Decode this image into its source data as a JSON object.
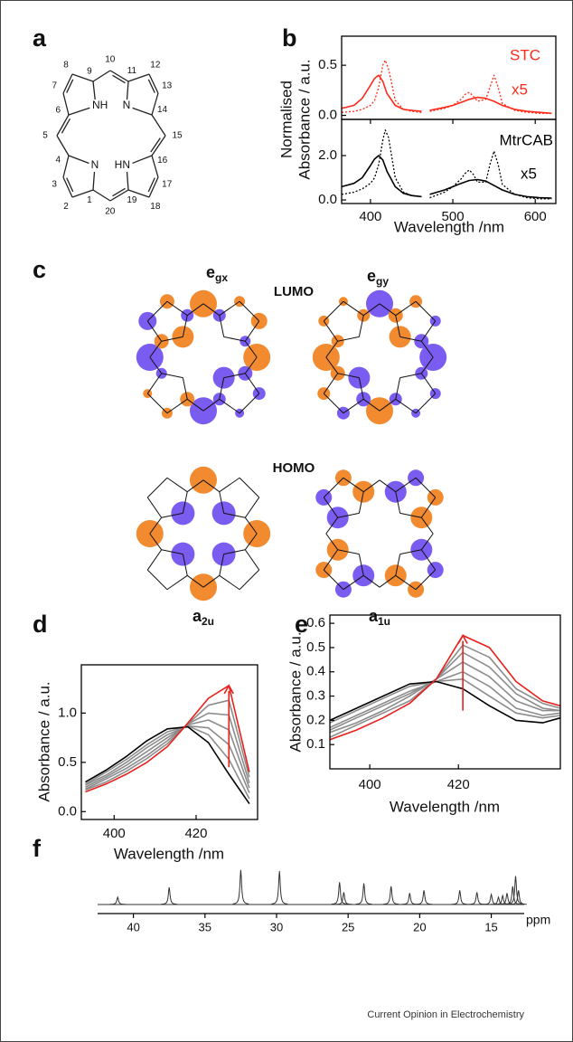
{
  "panel_labels": [
    "a",
    "b",
    "c",
    "d",
    "e",
    "f"
  ],
  "structure": {
    "atom_labels": [
      "1",
      "2",
      "3",
      "4",
      "5",
      "6",
      "7",
      "8",
      "9",
      "10",
      "11",
      "12",
      "13",
      "14",
      "15",
      "16",
      "17",
      "18",
      "19",
      "20"
    ],
    "nitrogen_labels": [
      "NH",
      "N",
      "N",
      "HN"
    ]
  },
  "orbitals": {
    "lumo": "LUMO",
    "homo": "HOMO",
    "labels": [
      {
        "main": "e",
        "sub": "gx"
      },
      {
        "main": "e",
        "sub": "gy"
      },
      {
        "main": "a",
        "sub": "2u"
      },
      {
        "main": "a",
        "sub": "1u"
      }
    ]
  },
  "chart_data": [
    {
      "type": "line",
      "ylabel": [
        "Normalised",
        "Absorbance / a.u."
      ],
      "xlim": [
        365,
        625
      ],
      "ylim": [
        -0.04,
        0.79
      ],
      "yticks": [
        {
          "value": 0,
          "label": "0.0"
        },
        0.5
      ],
      "annotations": [
        {
          "text": "STC",
          "color": "#ff2a1a"
        },
        {
          "text": "x5",
          "color": "#ff2a1a"
        }
      ],
      "series": [
        {
          "color": "#ff2a1a",
          "dash": false,
          "x": [
            365,
            380,
            390,
            400,
            405,
            410,
            415,
            420,
            430,
            440,
            450,
            462,
            467,
            472,
            490,
            500,
            510,
            520,
            530,
            540,
            550,
            560,
            575,
            590,
            605,
            620
          ],
          "values": [
            0.07,
            0.1,
            0.17,
            0.3,
            0.37,
            0.4,
            0.34,
            0.22,
            0.1,
            0.06,
            0.05,
            0.04,
            null,
            0.05,
            0.08,
            0.1,
            0.13,
            0.16,
            0.18,
            0.17,
            0.14,
            0.1,
            0.06,
            0.04,
            0.03,
            0.02
          ]
        },
        {
          "color": "#ff2a1a",
          "dash": true,
          "x": [
            365,
            380,
            390,
            400,
            405,
            410,
            415,
            418,
            422,
            430,
            440,
            450,
            462,
            467,
            472,
            490,
            500,
            510,
            515,
            520,
            525,
            530,
            540,
            545,
            550,
            555,
            560,
            575,
            590,
            605,
            620
          ],
          "values": [
            0.03,
            0.04,
            0.06,
            0.1,
            0.15,
            0.28,
            0.5,
            0.55,
            0.46,
            0.15,
            0.06,
            0.04,
            0.03,
            null,
            0.04,
            0.07,
            0.1,
            0.16,
            0.21,
            0.23,
            0.19,
            0.14,
            0.16,
            0.28,
            0.4,
            0.28,
            0.12,
            0.05,
            0.03,
            0.02,
            0.02
          ]
        }
      ]
    },
    {
      "type": "line",
      "xlabel": "Wavelength /nm",
      "xlim": [
        365,
        625
      ],
      "ylim": [
        -0.16,
        3.63
      ],
      "xticks": [
        400,
        500,
        600
      ],
      "yticks": [
        {
          "value": 0,
          "label": "0.0"
        },
        {
          "value": 2,
          "label": "2.0"
        }
      ],
      "annotations": [
        {
          "text": "MtrCAB",
          "color": "#000000"
        },
        {
          "text": "x5",
          "color": "#000000"
        }
      ],
      "series": [
        {
          "color": "#000000",
          "dash": false,
          "x": [
            365,
            380,
            390,
            400,
            405,
            410,
            415,
            420,
            430,
            440,
            450,
            462,
            467,
            472,
            490,
            500,
            510,
            520,
            530,
            540,
            550,
            560,
            575,
            590,
            605,
            620
          ],
          "values": [
            0.6,
            0.75,
            1.0,
            1.55,
            1.85,
            2.0,
            1.8,
            1.3,
            0.6,
            0.3,
            0.2,
            0.15,
            null,
            0.25,
            0.45,
            0.6,
            0.75,
            0.88,
            0.92,
            0.85,
            0.65,
            0.45,
            0.25,
            0.15,
            0.1,
            0.08
          ]
        },
        {
          "color": "#000000",
          "dash": true,
          "x": [
            365,
            380,
            390,
            400,
            405,
            410,
            415,
            418,
            422,
            430,
            440,
            450,
            462,
            467,
            472,
            490,
            500,
            510,
            515,
            520,
            525,
            530,
            540,
            545,
            550,
            555,
            560,
            575,
            590,
            605,
            620
          ],
          "values": [
            0.25,
            0.35,
            0.5,
            0.75,
            1.0,
            1.6,
            2.7,
            3.15,
            2.8,
            1.0,
            0.35,
            0.2,
            0.15,
            null,
            0.1,
            0.35,
            0.6,
            0.95,
            1.2,
            1.35,
            1.15,
            0.8,
            0.8,
            1.6,
            2.2,
            1.6,
            0.7,
            0.25,
            0.1,
            0.05,
            0.05
          ]
        }
      ]
    },
    {
      "type": "line",
      "ylabel": "Absorbance / a.u.",
      "xlabel": "Wavelength /nm",
      "xlim": [
        392,
        435
      ],
      "ylim": [
        -0.08,
        1.49
      ],
      "xticks": [
        400,
        420
      ],
      "yticks": [
        {
          "value": 0,
          "label": "0.0"
        },
        0.5,
        {
          "value": 1,
          "label": "1.0"
        }
      ],
      "x": [
        393,
        398,
        403,
        408,
        413,
        418,
        423,
        428,
        433
      ],
      "series": [
        {
          "color": "#8c8c8c",
          "dash": false,
          "values": [
            0.28,
            0.4,
            0.53,
            0.68,
            0.81,
            0.87,
            0.78,
            0.53,
            0.13
          ]
        },
        {
          "color": "#8c8c8c",
          "dash": false,
          "values": [
            0.27,
            0.37,
            0.5,
            0.65,
            0.78,
            0.87,
            0.85,
            0.68,
            0.19
          ]
        },
        {
          "color": "#8c8c8c",
          "dash": false,
          "values": [
            0.25,
            0.35,
            0.47,
            0.61,
            0.75,
            0.88,
            0.93,
            0.83,
            0.24
          ]
        },
        {
          "color": "#8c8c8c",
          "dash": false,
          "values": [
            0.23,
            0.33,
            0.44,
            0.57,
            0.72,
            0.89,
            1.0,
            0.98,
            0.29
          ]
        },
        {
          "color": "#8c8c8c",
          "dash": false,
          "values": [
            0.22,
            0.3,
            0.41,
            0.54,
            0.69,
            0.89,
            1.08,
            1.13,
            0.35
          ]
        },
        {
          "color": "#000000",
          "dash": false,
          "values": [
            0.3,
            0.42,
            0.56,
            0.72,
            0.84,
            0.86,
            0.7,
            0.38,
            0.08
          ]
        },
        {
          "color": "#e8201c",
          "dash": false,
          "values": [
            0.2,
            0.28,
            0.38,
            0.5,
            0.66,
            0.9,
            1.15,
            1.28,
            0.4
          ]
        }
      ],
      "arrow": {
        "x": 428,
        "from": 0.45,
        "to": 1.28,
        "color": "#e8201c"
      }
    },
    {
      "type": "line",
      "ylabel": "Absorbance / a.u.",
      "xlabel": "Wavelength /nm",
      "xlim": [
        391,
        443
      ],
      "ylim": [
        0,
        0.634
      ],
      "xticks": [
        400,
        420
      ],
      "yticks": [
        0.1,
        0.2,
        0.3,
        0.4,
        0.5,
        0.6
      ],
      "x": [
        391,
        397,
        403,
        409,
        415,
        421,
        427,
        433,
        439,
        443
      ],
      "series": [
        {
          "color": "#8c8c8c",
          "dash": false,
          "values": [
            0.19,
            0.24,
            0.29,
            0.34,
            0.36,
            0.37,
            0.3,
            0.23,
            0.21,
            0.22
          ]
        },
        {
          "color": "#8c8c8c",
          "dash": false,
          "values": [
            0.17,
            0.22,
            0.27,
            0.32,
            0.36,
            0.4,
            0.34,
            0.25,
            0.22,
            0.23
          ]
        },
        {
          "color": "#8c8c8c",
          "dash": false,
          "values": [
            0.16,
            0.21,
            0.26,
            0.31,
            0.37,
            0.44,
            0.38,
            0.28,
            0.24,
            0.24
          ]
        },
        {
          "color": "#8c8c8c",
          "dash": false,
          "values": [
            0.15,
            0.19,
            0.24,
            0.3,
            0.37,
            0.48,
            0.42,
            0.31,
            0.25,
            0.24
          ]
        },
        {
          "color": "#8c8c8c",
          "dash": false,
          "values": [
            0.13,
            0.18,
            0.23,
            0.28,
            0.37,
            0.51,
            0.46,
            0.33,
            0.27,
            0.25
          ]
        },
        {
          "color": "#000000",
          "dash": false,
          "values": [
            0.2,
            0.25,
            0.3,
            0.35,
            0.36,
            0.33,
            0.26,
            0.2,
            0.19,
            0.21
          ]
        },
        {
          "color": "#e8201c",
          "dash": false,
          "values": [
            0.12,
            0.16,
            0.21,
            0.27,
            0.37,
            0.55,
            0.5,
            0.36,
            0.28,
            0.26
          ]
        }
      ],
      "arrow": {
        "x": 421,
        "from": 0.24,
        "to": 0.55,
        "color": "#e8201c"
      }
    },
    {
      "type": "stem",
      "xlabel": "ppm",
      "xlim": [
        42.5,
        12.7
      ],
      "ylim": [
        0,
        1
      ],
      "xticks": [
        40,
        35,
        30,
        25,
        20,
        15
      ],
      "color": "#333333",
      "x": [
        41.1,
        37.5,
        32.5,
        29.8,
        25.6,
        25.3,
        23.9,
        22.0,
        20.7,
        19.7,
        17.2,
        16.0,
        15.0,
        14.5,
        14.2,
        13.9,
        13.5,
        13.3,
        13.1
      ],
      "values": [
        0.18,
        0.42,
        0.85,
        0.82,
        0.55,
        0.3,
        0.52,
        0.45,
        0.28,
        0.35,
        0.35,
        0.3,
        0.25,
        0.18,
        0.22,
        0.28,
        0.45,
        0.7,
        0.35
      ]
    }
  ],
  "credit": "Current Opinion in Electrochemistry"
}
